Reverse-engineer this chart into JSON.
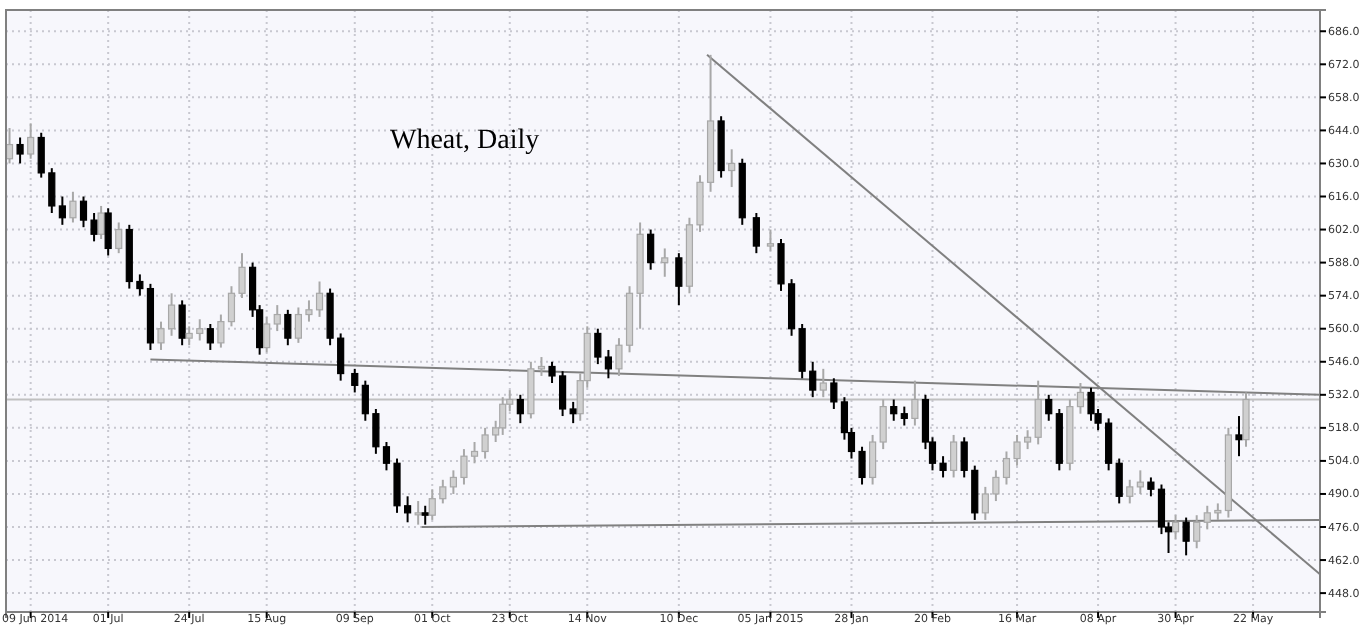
{
  "chart_data": {
    "type": "candlestick",
    "title": "Wheat, Daily",
    "x": [
      "2014-06-03",
      "2014-06-06",
      "2014-06-09",
      "2014-06-12",
      "2014-06-15",
      "2014-06-18",
      "2014-06-21",
      "2014-06-24",
      "2014-06-27",
      "2014-06-29",
      "2014-07-01",
      "2014-07-04",
      "2014-07-07",
      "2014-07-10",
      "2014-07-13",
      "2014-07-16",
      "2014-07-19",
      "2014-07-22",
      "2014-07-24",
      "2014-07-27",
      "2014-07-30",
      "2014-08-02",
      "2014-08-05",
      "2014-08-08",
      "2014-08-11",
      "2014-08-13",
      "2014-08-15",
      "2014-08-18",
      "2014-08-21",
      "2014-08-24",
      "2014-08-27",
      "2014-08-30",
      "2014-09-02",
      "2014-09-05",
      "2014-09-09",
      "2014-09-12",
      "2014-09-15",
      "2014-09-18",
      "2014-09-21",
      "2014-09-24",
      "2014-09-27",
      "2014-09-29",
      "2014-10-01",
      "2014-10-04",
      "2014-10-07",
      "2014-10-10",
      "2014-10-13",
      "2014-10-16",
      "2014-10-19",
      "2014-10-21",
      "2014-10-23",
      "2014-10-26",
      "2014-10-29",
      "2014-11-01",
      "2014-11-04",
      "2014-11-07",
      "2014-11-10",
      "2014-11-12",
      "2014-11-14",
      "2014-11-17",
      "2014-11-20",
      "2014-11-23",
      "2014-11-26",
      "2014-11-29",
      "2014-12-02",
      "2014-12-06",
      "2014-12-10",
      "2014-12-13",
      "2014-12-16",
      "2014-12-19",
      "2014-12-22",
      "2014-12-25",
      "2014-12-28",
      "2015-01-01",
      "2015-01-05",
      "2015-01-08",
      "2015-01-11",
      "2015-01-14",
      "2015-01-17",
      "2015-01-20",
      "2015-01-23",
      "2015-01-26",
      "2015-01-28",
      "2015-01-31",
      "2015-02-03",
      "2015-02-06",
      "2015-02-09",
      "2015-02-12",
      "2015-02-15",
      "2015-02-18",
      "2015-02-20",
      "2015-02-23",
      "2015-02-26",
      "2015-03-01",
      "2015-03-04",
      "2015-03-07",
      "2015-03-10",
      "2015-03-13",
      "2015-03-16",
      "2015-03-19",
      "2015-03-22",
      "2015-03-25",
      "2015-03-28",
      "2015-03-31",
      "2015-04-03",
      "2015-04-06",
      "2015-04-08",
      "2015-04-11",
      "2015-04-14",
      "2015-04-17",
      "2015-04-20",
      "2015-04-23",
      "2015-04-26",
      "2015-04-28",
      "2015-04-30",
      "2015-05-03",
      "2015-05-06",
      "2015-05-09",
      "2015-05-12",
      "2015-05-15",
      "2015-05-18",
      "2015-05-20"
    ],
    "ohlc": [
      [
        632,
        645,
        630,
        638
      ],
      [
        638,
        641,
        630,
        634
      ],
      [
        634,
        647,
        632,
        641
      ],
      [
        641,
        643,
        624,
        626
      ],
      [
        626,
        628,
        609,
        612
      ],
      [
        612,
        616,
        604,
        607
      ],
      [
        607,
        618,
        605,
        614
      ],
      [
        614,
        616,
        603,
        606
      ],
      [
        606,
        609,
        597,
        600
      ],
      [
        600,
        612,
        598,
        609
      ],
      [
        609,
        611,
        591,
        594
      ],
      [
        594,
        605,
        592,
        602
      ],
      [
        602,
        604,
        577,
        580
      ],
      [
        580,
        583,
        574,
        577
      ],
      [
        577,
        579,
        551,
        554
      ],
      [
        554,
        563,
        551,
        560
      ],
      [
        560,
        575,
        557,
        570
      ],
      [
        570,
        572,
        553,
        556
      ],
      [
        556,
        561,
        553,
        558
      ],
      [
        558,
        564,
        555,
        560
      ],
      [
        560,
        562,
        551,
        554
      ],
      [
        554,
        566,
        552,
        563
      ],
      [
        563,
        578,
        561,
        575
      ],
      [
        575,
        592,
        573,
        586
      ],
      [
        586,
        588,
        565,
        568
      ],
      [
        568,
        570,
        549,
        552
      ],
      [
        552,
        565,
        550,
        562
      ],
      [
        562,
        570,
        559,
        566
      ],
      [
        566,
        568,
        553,
        556
      ],
      [
        556,
        569,
        554,
        566
      ],
      [
        566,
        572,
        563,
        568
      ],
      [
        568,
        580,
        565,
        575
      ],
      [
        575,
        577,
        553,
        556
      ],
      [
        556,
        558,
        538,
        541
      ],
      [
        541,
        543,
        533,
        536
      ],
      [
        536,
        538,
        521,
        524
      ],
      [
        524,
        526,
        507,
        510
      ],
      [
        510,
        512,
        500,
        503
      ],
      [
        503,
        505,
        482,
        485
      ],
      [
        485,
        489,
        478,
        482
      ],
      [
        482,
        487,
        477,
        482
      ],
      [
        482,
        485,
        477,
        481
      ],
      [
        481,
        492,
        479,
        488
      ],
      [
        488,
        496,
        486,
        493
      ],
      [
        493,
        500,
        490,
        497
      ],
      [
        497,
        509,
        494,
        506
      ],
      [
        506,
        512,
        503,
        508
      ],
      [
        508,
        518,
        505,
        515
      ],
      [
        515,
        521,
        512,
        518
      ],
      [
        518,
        531,
        515,
        528
      ],
      [
        528,
        534,
        525,
        530
      ],
      [
        530,
        532,
        520,
        524
      ],
      [
        524,
        546,
        522,
        543
      ],
      [
        543,
        548,
        540,
        544
      ],
      [
        544,
        546,
        537,
        540
      ],
      [
        540,
        542,
        523,
        526
      ],
      [
        526,
        529,
        520,
        524
      ],
      [
        524,
        541,
        521,
        538
      ],
      [
        538,
        561,
        535,
        558
      ],
      [
        558,
        560,
        545,
        548
      ],
      [
        548,
        551,
        539,
        543
      ],
      [
        543,
        556,
        540,
        553
      ],
      [
        553,
        578,
        550,
        575
      ],
      [
        575,
        605,
        560,
        600
      ],
      [
        600,
        602,
        585,
        588
      ],
      [
        588,
        594,
        582,
        590
      ],
      [
        590,
        592,
        570,
        578
      ],
      [
        578,
        607,
        575,
        604
      ],
      [
        604,
        625,
        601,
        622
      ],
      [
        622,
        676,
        618,
        648
      ],
      [
        648,
        650,
        624,
        627
      ],
      [
        627,
        636,
        620,
        630
      ],
      [
        630,
        632,
        604,
        607
      ],
      [
        607,
        609,
        592,
        595
      ],
      [
        595,
        602,
        593,
        596
      ],
      [
        596,
        598,
        576,
        579
      ],
      [
        579,
        581,
        557,
        560
      ],
      [
        560,
        562,
        539,
        542
      ],
      [
        542,
        546,
        531,
        534
      ],
      [
        534,
        543,
        531,
        537
      ],
      [
        537,
        539,
        526,
        529
      ],
      [
        529,
        531,
        513,
        516
      ],
      [
        516,
        518,
        505,
        508
      ],
      [
        508,
        510,
        494,
        497
      ],
      [
        497,
        515,
        494,
        512
      ],
      [
        512,
        530,
        509,
        527
      ],
      [
        527,
        530,
        521,
        524
      ],
      [
        524,
        527,
        519,
        522
      ],
      [
        522,
        538,
        519,
        530
      ],
      [
        530,
        532,
        509,
        512
      ],
      [
        512,
        514,
        500,
        503
      ],
      [
        503,
        506,
        497,
        500
      ],
      [
        500,
        515,
        497,
        512
      ],
      [
        512,
        514,
        497,
        500
      ],
      [
        500,
        502,
        479,
        482
      ],
      [
        482,
        493,
        479,
        490
      ],
      [
        490,
        500,
        487,
        497
      ],
      [
        497,
        508,
        494,
        505
      ],
      [
        505,
        515,
        502,
        512
      ],
      [
        512,
        517,
        509,
        514
      ],
      [
        514,
        538,
        511,
        530
      ],
      [
        530,
        532,
        521,
        524
      ],
      [
        524,
        526,
        500,
        503
      ],
      [
        503,
        530,
        500,
        527
      ],
      [
        527,
        537,
        524,
        533
      ],
      [
        533,
        535,
        521,
        524
      ],
      [
        524,
        526,
        517,
        520
      ],
      [
        520,
        522,
        500,
        503
      ],
      [
        503,
        505,
        486,
        489
      ],
      [
        489,
        496,
        486,
        493
      ],
      [
        493,
        500,
        490,
        495
      ],
      [
        495,
        497,
        489,
        492
      ],
      [
        492,
        494,
        473,
        476
      ],
      [
        476,
        478,
        465,
        474
      ],
      [
        474,
        481,
        471,
        478
      ],
      [
        478,
        480,
        464,
        470
      ],
      [
        470,
        481,
        467,
        478
      ],
      [
        478,
        485,
        475,
        482
      ],
      [
        482,
        486,
        479,
        483
      ],
      [
        483,
        518,
        480,
        515
      ],
      [
        515,
        523,
        506,
        513
      ],
      [
        513,
        533,
        510,
        530
      ]
    ],
    "series": [
      {
        "type": "line",
        "color": "#808080",
        "x": [
          "2014-07-13",
          "2015-06-10"
        ],
        "values": [
          547,
          532
        ]
      },
      {
        "type": "line",
        "color": "#808080",
        "x": [
          "2014-09-28",
          "2015-06-10"
        ],
        "values": [
          476,
          479
        ]
      },
      {
        "type": "line",
        "color": "#808080",
        "x": [
          "2014-12-18",
          "2015-06-10"
        ],
        "values": [
          676,
          456
        ]
      }
    ],
    "ref_lines": [
      {
        "axis": "y",
        "value": 530,
        "color": "#c0c0c0"
      }
    ],
    "xlim": [
      "2014-06-02",
      "2015-06-10"
    ],
    "xticks": [
      {
        "value": "2014-06-09",
        "label": "09 Jun 2014"
      },
      {
        "value": "2014-07-01",
        "label": "01 Jul"
      },
      {
        "value": "2014-07-24",
        "label": "24 Jul"
      },
      {
        "value": "2014-08-15",
        "label": "15 Aug"
      },
      {
        "value": "2014-09-09",
        "label": "09 Sep"
      },
      {
        "value": "2014-10-01",
        "label": "01 Oct"
      },
      {
        "value": "2014-10-23",
        "label": "23 Oct"
      },
      {
        "value": "2014-11-14",
        "label": "14 Nov"
      },
      {
        "value": "2014-12-10",
        "label": "10 Dec"
      },
      {
        "value": "2015-01-05",
        "label": "05 Jan 2015"
      },
      {
        "value": "2015-01-28",
        "label": "28 Jan"
      },
      {
        "value": "2015-02-20",
        "label": "20 Feb"
      },
      {
        "value": "2015-03-16",
        "label": "16 Mar"
      },
      {
        "value": "2015-04-08",
        "label": "08 Apr"
      },
      {
        "value": "2015-04-30",
        "label": "30 Apr"
      },
      {
        "value": "2015-05-22",
        "label": "22 May"
      }
    ],
    "ylim": [
      440,
      695
    ],
    "yticks": [
      {
        "value": 448,
        "label": "448.0"
      },
      {
        "value": 462,
        "label": "462.0"
      },
      {
        "value": 476,
        "label": "476.0"
      },
      {
        "value": 490,
        "label": "490.0"
      },
      {
        "value": 504,
        "label": "504.0"
      },
      {
        "value": 518,
        "label": "518.0"
      },
      {
        "value": 532,
        "label": "532.0"
      },
      {
        "value": 546,
        "label": "546.0"
      },
      {
        "value": 560,
        "label": "560.0"
      },
      {
        "value": 574,
        "label": "574.0"
      },
      {
        "value": 588,
        "label": "588.0"
      },
      {
        "value": 602,
        "label": "602.0"
      },
      {
        "value": 616,
        "label": "616.0"
      },
      {
        "value": 630,
        "label": "630.0"
      },
      {
        "value": 644,
        "label": "644.0"
      },
      {
        "value": 658,
        "label": "658.0"
      },
      {
        "value": 672,
        "label": "672.0"
      },
      {
        "value": 686,
        "label": "686.0"
      }
    ],
    "grid": true
  }
}
